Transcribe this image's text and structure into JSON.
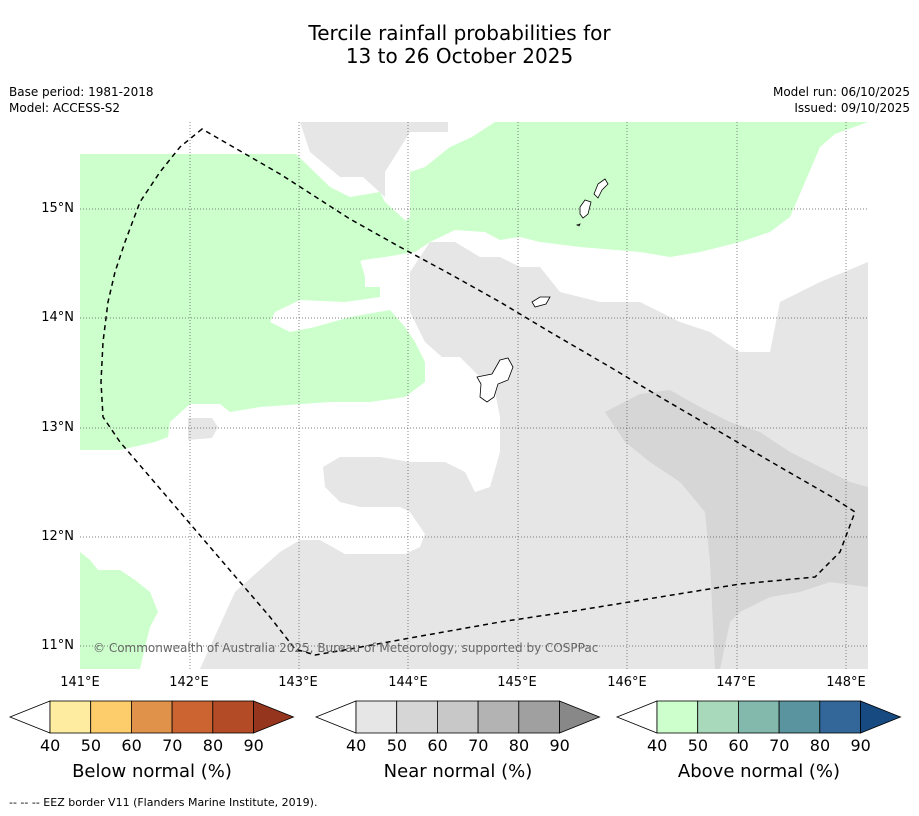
{
  "title": {
    "line1": "Tercile rainfall probabilities for",
    "line2": "13 to 26 October 2025"
  },
  "meta": {
    "base_period": "Base period: 1981-2018",
    "model": "Model: ACCESS-S2",
    "model_run": "Model run: 06/10/2025",
    "issued": "Issued: 09/10/2025"
  },
  "map": {
    "lat_labels": [
      "15°N",
      "14°N",
      "13°N",
      "12°N",
      "11°N"
    ],
    "lon_labels": [
      "141°E",
      "142°E",
      "143°E",
      "144°E",
      "145°E",
      "146°E",
      "147°E",
      "148°E"
    ],
    "copyright": "© Commonwealth of Australia 2025, Bureau of Meteorology, supported by COSPPac",
    "colors": {
      "above_50": "#ccffcc",
      "near_40": "#e6e6e6",
      "near_50": "#d6d6d6",
      "land_outline": "#000000",
      "eez_border": "#000000"
    }
  },
  "legend": {
    "below": {
      "title": "Below normal (%)",
      "ticks": [
        "40",
        "50",
        "60",
        "70",
        "80",
        "90"
      ],
      "colors": [
        "#feeda1",
        "#fdcd6b",
        "#e0924a",
        "#cc6432",
        "#b34b26",
        "#96351d"
      ]
    },
    "near": {
      "title": "Near normal (%)",
      "ticks": [
        "40",
        "50",
        "60",
        "70",
        "80",
        "90"
      ],
      "colors": [
        "#e6e6e6",
        "#d6d6d6",
        "#c8c8c8",
        "#b3b3b3",
        "#a0a0a0",
        "#888888"
      ]
    },
    "above": {
      "title": "Above normal (%)",
      "ticks": [
        "40",
        "50",
        "60",
        "70",
        "80",
        "90"
      ],
      "colors": [
        "#ccffcc",
        "#a9d9bb",
        "#83b8ad",
        "#5a949e",
        "#336699",
        "#174a80"
      ]
    }
  },
  "footnote": "--  --  -- EEZ border V11 (Flanders Marine Institute, 2019)."
}
